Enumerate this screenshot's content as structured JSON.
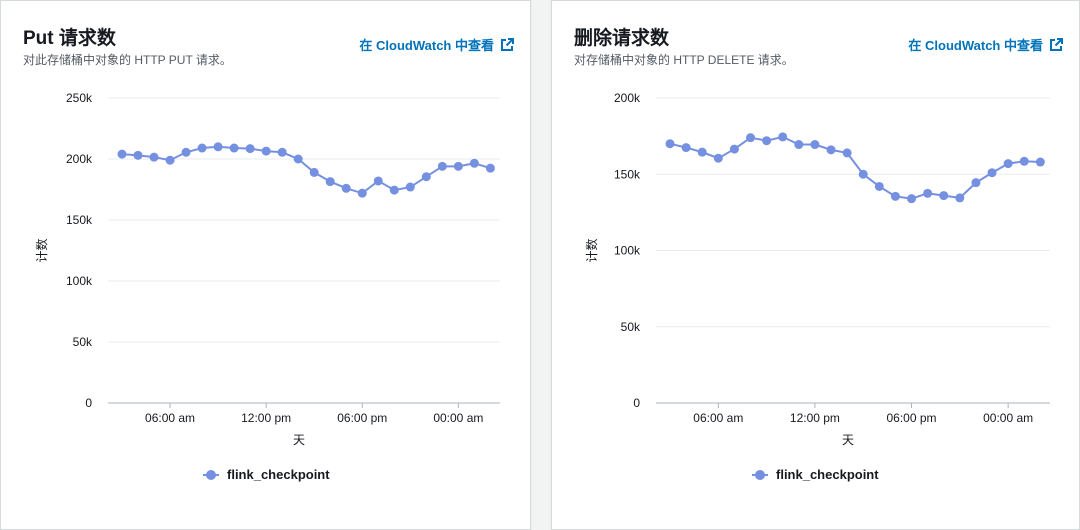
{
  "link": {
    "label": "在 CloudWatch 中查看",
    "icon": "external-link-icon"
  },
  "colors": {
    "series": "#7590e0",
    "grid": "#e9ebed",
    "link": "#0073bb"
  },
  "chart_data": [
    {
      "type": "line",
      "title": "Put 请求数",
      "subtitle": "对此存储桶中对象的 HTTP PUT 请求。",
      "xlabel": "天",
      "ylabel": "计数",
      "yticks": [
        "0",
        "50k",
        "100k",
        "150k",
        "200k",
        "250k"
      ],
      "ylim": [
        0,
        250000
      ],
      "xlim": [
        0,
        23.6
      ],
      "xticks": [
        {
          "label": "06:00 am",
          "x": 3
        },
        {
          "label": "12:00 pm",
          "x": 9
        },
        {
          "label": "06:00 pm",
          "x": 15
        },
        {
          "label": "00:00 am",
          "x": 21
        }
      ],
      "grid": true,
      "legend": "bottom",
      "series": [
        {
          "name": "flink_checkpoint",
          "x": [
            0,
            1,
            2,
            3,
            4,
            5,
            6,
            7,
            8,
            9,
            10,
            11,
            12,
            13,
            14,
            15,
            16,
            17,
            18,
            19,
            20,
            21,
            22,
            23
          ],
          "values": [
            204000,
            203000,
            201500,
            199000,
            205500,
            209000,
            210000,
            209000,
            208500,
            206500,
            205500,
            200000,
            189000,
            181500,
            176000,
            172000,
            182000,
            174500,
            177000,
            185500,
            194000,
            194000,
            196500,
            192500
          ]
        }
      ]
    },
    {
      "type": "line",
      "title": "删除请求数",
      "subtitle": "对存储桶中对象的 HTTP DELETE 请求。",
      "xlabel": "天",
      "ylabel": "计数",
      "yticks": [
        "0",
        "50k",
        "100k",
        "150k",
        "200k"
      ],
      "ylim": [
        0,
        200000
      ],
      "xlim": [
        0,
        23.6
      ],
      "xticks": [
        {
          "label": "06:00 am",
          "x": 3
        },
        {
          "label": "12:00 pm",
          "x": 9
        },
        {
          "label": "06:00 pm",
          "x": 15
        },
        {
          "label": "00:00 am",
          "x": 21
        }
      ],
      "grid": true,
      "legend": "bottom",
      "series": [
        {
          "name": "flink_checkpoint",
          "x": [
            0,
            1,
            2,
            3,
            4,
            5,
            6,
            7,
            8,
            9,
            10,
            11,
            12,
            13,
            14,
            15,
            16,
            17,
            18,
            19,
            20,
            21,
            22,
            23
          ],
          "values": [
            170000,
            167500,
            164500,
            160500,
            166500,
            174000,
            172000,
            174500,
            169500,
            169500,
            166000,
            164000,
            150000,
            142000,
            135500,
            134000,
            137500,
            136000,
            134500,
            144500,
            151000,
            157000,
            158500,
            158000
          ]
        }
      ]
    }
  ]
}
